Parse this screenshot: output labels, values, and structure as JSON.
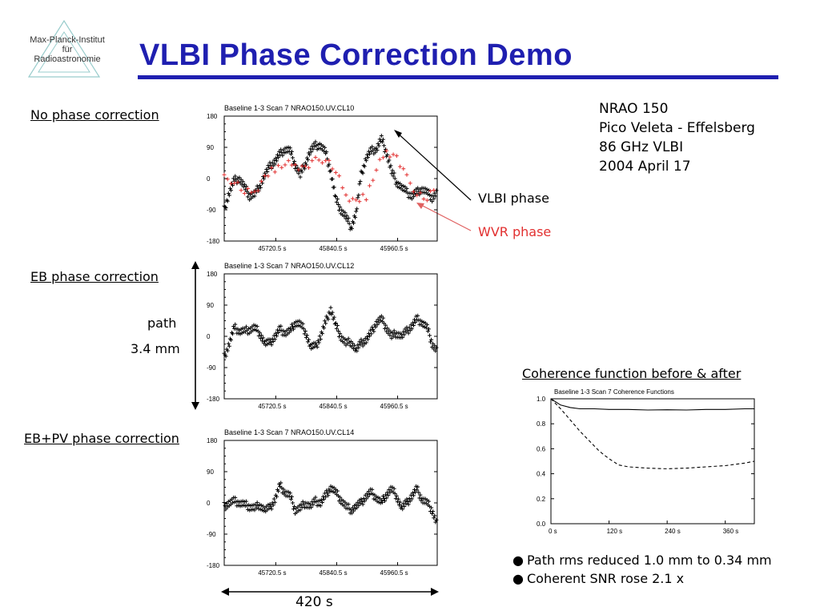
{
  "slide": {
    "title": "VLBI Phase Correction Demo",
    "logo_lines": [
      "Max-Planck-Institut",
      "für",
      "Radioastronomie"
    ],
    "accent_color": "#1f1fb0"
  },
  "labels": {
    "no_correction": "No phase correction",
    "eb_correction": "EB phase correction",
    "ebpv_correction": "EB+PV phase correction",
    "path_label": "path",
    "path_value": "3.4 mm",
    "coherence_title": "Coherence function before & after",
    "vlbi_phase": "VLBI phase",
    "wvr_phase": "WVR phase",
    "duration": "420 s"
  },
  "info": {
    "source": "NRAO 150",
    "baseline": "Pico Veleta - Effelsberg",
    "band": "86 GHz VLBI",
    "date": "2004 April 17"
  },
  "bullets": [
    "Path rms reduced 1.0 mm to 0.34 mm",
    "Coherent SNR rose 2.1 x"
  ],
  "colors": {
    "vlbi": "#000000",
    "wvr": "#e23030",
    "arrow_red": "#e06060"
  },
  "chart_data": [
    {
      "type": "scatter",
      "header": "Baseline 1-3    Scan 7    NRAO150.UV.CL10",
      "yticks": [
        "180",
        "90",
        "0",
        "-90",
        "-180"
      ],
      "xticks": [
        "45720.5 s",
        "45840.5 s",
        "45960.5 s"
      ],
      "ylim": [
        -180,
        180
      ],
      "xlim": [
        45620,
        46040
      ],
      "series": [
        {
          "color": "#000000",
          "x": [
            45620,
            45630,
            45640,
            45650,
            45660,
            45670,
            45680,
            45690,
            45700,
            45710,
            45720,
            45730,
            45740,
            45750,
            45760,
            45770,
            45780,
            45790,
            45800,
            45810,
            45820,
            45830,
            45840,
            45850,
            45860,
            45870,
            45880,
            45890,
            45900,
            45910,
            45920,
            45930,
            45940,
            45950,
            45960,
            45970,
            45980,
            45990,
            46000,
            46010,
            46020,
            46030,
            46040
          ],
          "y": [
            -90,
            -40,
            -5,
            0,
            -25,
            -50,
            -45,
            -20,
            10,
            35,
            50,
            70,
            85,
            80,
            40,
            10,
            45,
            80,
            95,
            95,
            75,
            20,
            -60,
            -90,
            -110,
            -140,
            -100,
            10,
            60,
            80,
            85,
            115,
            75,
            20,
            -10,
            -25,
            -40,
            -50,
            -40,
            -30,
            -40,
            -55,
            -40
          ]
        },
        {
          "color": "#e23030",
          "x": [
            45620,
            45640,
            45660,
            45680,
            45700,
            45720,
            45740,
            45760,
            45780,
            45800,
            45820,
            45840,
            45860,
            45880,
            45900,
            45920,
            45940,
            45960,
            45980,
            46000,
            46020,
            46040
          ],
          "y": [
            0,
            -5,
            -40,
            -40,
            0,
            30,
            45,
            40,
            30,
            50,
            60,
            20,
            -50,
            -70,
            -50,
            30,
            80,
            60,
            0,
            -40,
            -60,
            -20
          ]
        }
      ]
    },
    {
      "type": "scatter",
      "header": "Baseline 1-3    Scan 7    NRAO150.UV.CL12",
      "yticks": [
        "180",
        "90",
        "0",
        "-90",
        "-180"
      ],
      "xticks": [
        "45720.5 s",
        "45840.5 s",
        "45960.5 s"
      ],
      "ylim": [
        -180,
        180
      ],
      "xlim": [
        45620,
        46040
      ],
      "series": [
        {
          "color": "#000000",
          "x": [
            45620,
            45630,
            45640,
            45650,
            45660,
            45670,
            45680,
            45690,
            45700,
            45710,
            45720,
            45730,
            45740,
            45750,
            45760,
            45770,
            45780,
            45790,
            45800,
            45810,
            45820,
            45830,
            45840,
            45850,
            45860,
            45870,
            45880,
            45890,
            45900,
            45910,
            45920,
            45930,
            45940,
            45950,
            45960,
            45970,
            45980,
            45990,
            46000,
            46010,
            46020,
            46030,
            46040
          ],
          "y": [
            -60,
            -20,
            25,
            15,
            15,
            20,
            25,
            10,
            -20,
            -20,
            0,
            20,
            10,
            15,
            40,
            35,
            15,
            -30,
            -30,
            0,
            40,
            80,
            30,
            0,
            -20,
            -15,
            -40,
            -20,
            -10,
            10,
            40,
            50,
            25,
            0,
            10,
            0,
            15,
            30,
            50,
            40,
            25,
            -20,
            -45
          ]
        }
      ]
    },
    {
      "type": "scatter",
      "header": "Baseline 1-3    Scan 7    NRAO150.UV.CL14",
      "yticks": [
        "180",
        "90",
        "0",
        "-90",
        "-180"
      ],
      "xticks": [
        "45720.5 s",
        "45840.5 s",
        "45960.5 s"
      ],
      "ylim": [
        -180,
        180
      ],
      "xlim": [
        45620,
        46040
      ],
      "series": [
        {
          "color": "#000000",
          "x": [
            45620,
            45630,
            45640,
            45650,
            45660,
            45670,
            45680,
            45690,
            45700,
            45710,
            45720,
            45730,
            45740,
            45750,
            45760,
            45770,
            45780,
            45790,
            45800,
            45810,
            45820,
            45830,
            45840,
            45850,
            45860,
            45870,
            45880,
            45890,
            45900,
            45910,
            45920,
            45930,
            45940,
            45950,
            45960,
            45970,
            45980,
            45990,
            46000,
            46010,
            46020,
            46030,
            46040
          ],
          "y": [
            -10,
            0,
            5,
            0,
            -5,
            -10,
            -15,
            -5,
            -20,
            -15,
            10,
            50,
            30,
            20,
            -20,
            -15,
            0,
            -10,
            5,
            0,
            20,
            45,
            30,
            10,
            -10,
            -20,
            -10,
            0,
            20,
            30,
            15,
            0,
            25,
            40,
            20,
            -15,
            0,
            20,
            40,
            10,
            0,
            -20,
            -65
          ]
        }
      ]
    },
    {
      "type": "line",
      "header": "Baseline 1-3    Scan 7    Coherence Functions",
      "yticks": [
        "1.0",
        "0.8",
        "0.6",
        "0.4",
        "0.2",
        "0.0"
      ],
      "xticks": [
        "0 s",
        "120 s",
        "240 s",
        "360 s"
      ],
      "ylim": [
        0,
        1
      ],
      "xlim": [
        0,
        420
      ],
      "series": [
        {
          "style": "solid",
          "x": [
            0,
            20,
            40,
            60,
            90,
            120,
            160,
            200,
            240,
            280,
            320,
            360,
            400,
            420
          ],
          "y": [
            1.0,
            0.95,
            0.93,
            0.92,
            0.92,
            0.915,
            0.915,
            0.91,
            0.912,
            0.91,
            0.915,
            0.915,
            0.92,
            0.92
          ]
        },
        {
          "style": "dashed",
          "x": [
            0,
            20,
            40,
            60,
            80,
            100,
            120,
            140,
            160,
            200,
            240,
            280,
            320,
            360,
            400,
            420
          ],
          "y": [
            1.0,
            0.92,
            0.83,
            0.74,
            0.66,
            0.58,
            0.52,
            0.47,
            0.455,
            0.445,
            0.44,
            0.445,
            0.455,
            0.465,
            0.485,
            0.5
          ]
        }
      ]
    }
  ]
}
